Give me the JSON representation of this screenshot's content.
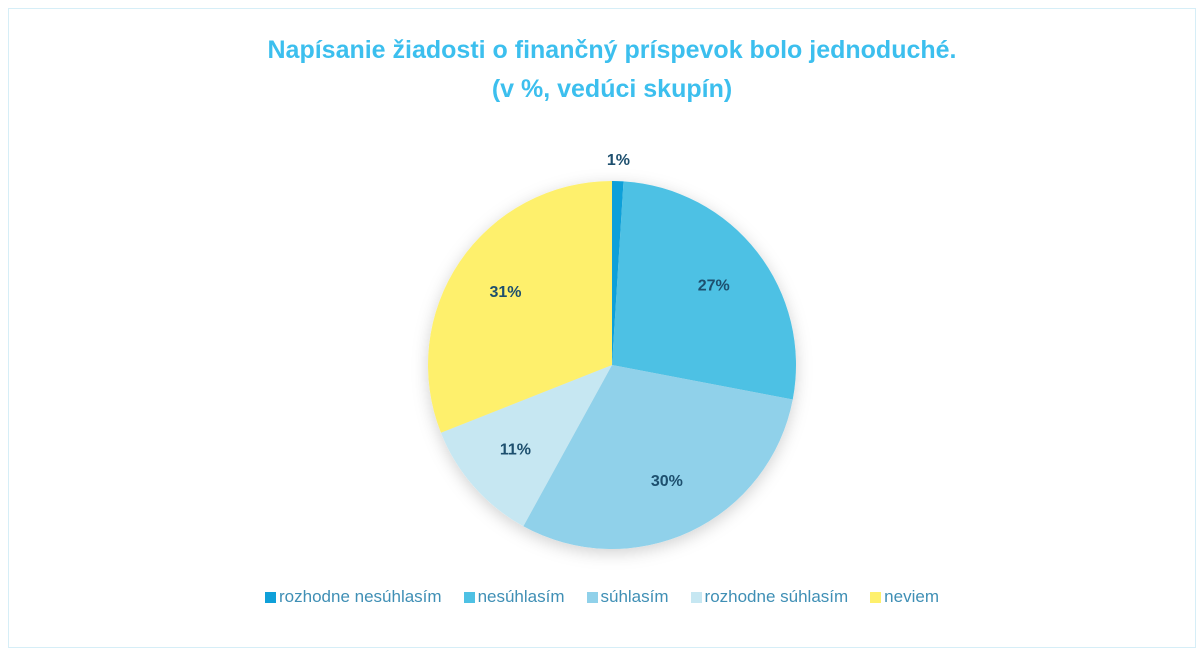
{
  "chart_data": {
    "type": "pie",
    "title": "Napísanie žiadosti o finančný príspevok bolo jednoduché.",
    "subtitle": "(v %, vedúci skupín)",
    "categories": [
      "rozhodne nesúhlasím",
      "nesúhlasím",
      "súhlasím",
      "rozhodne súhlasím",
      "neviem"
    ],
    "values": [
      1,
      27,
      30,
      11,
      31
    ],
    "value_labels": [
      "1%",
      "27%",
      "30%",
      "11%",
      "31%"
    ],
    "colors": [
      "#0fa0d9",
      "#4ec1e4",
      "#90d1ea",
      "#c6e7f2",
      "#fef06c"
    ],
    "legend": "bottom"
  }
}
